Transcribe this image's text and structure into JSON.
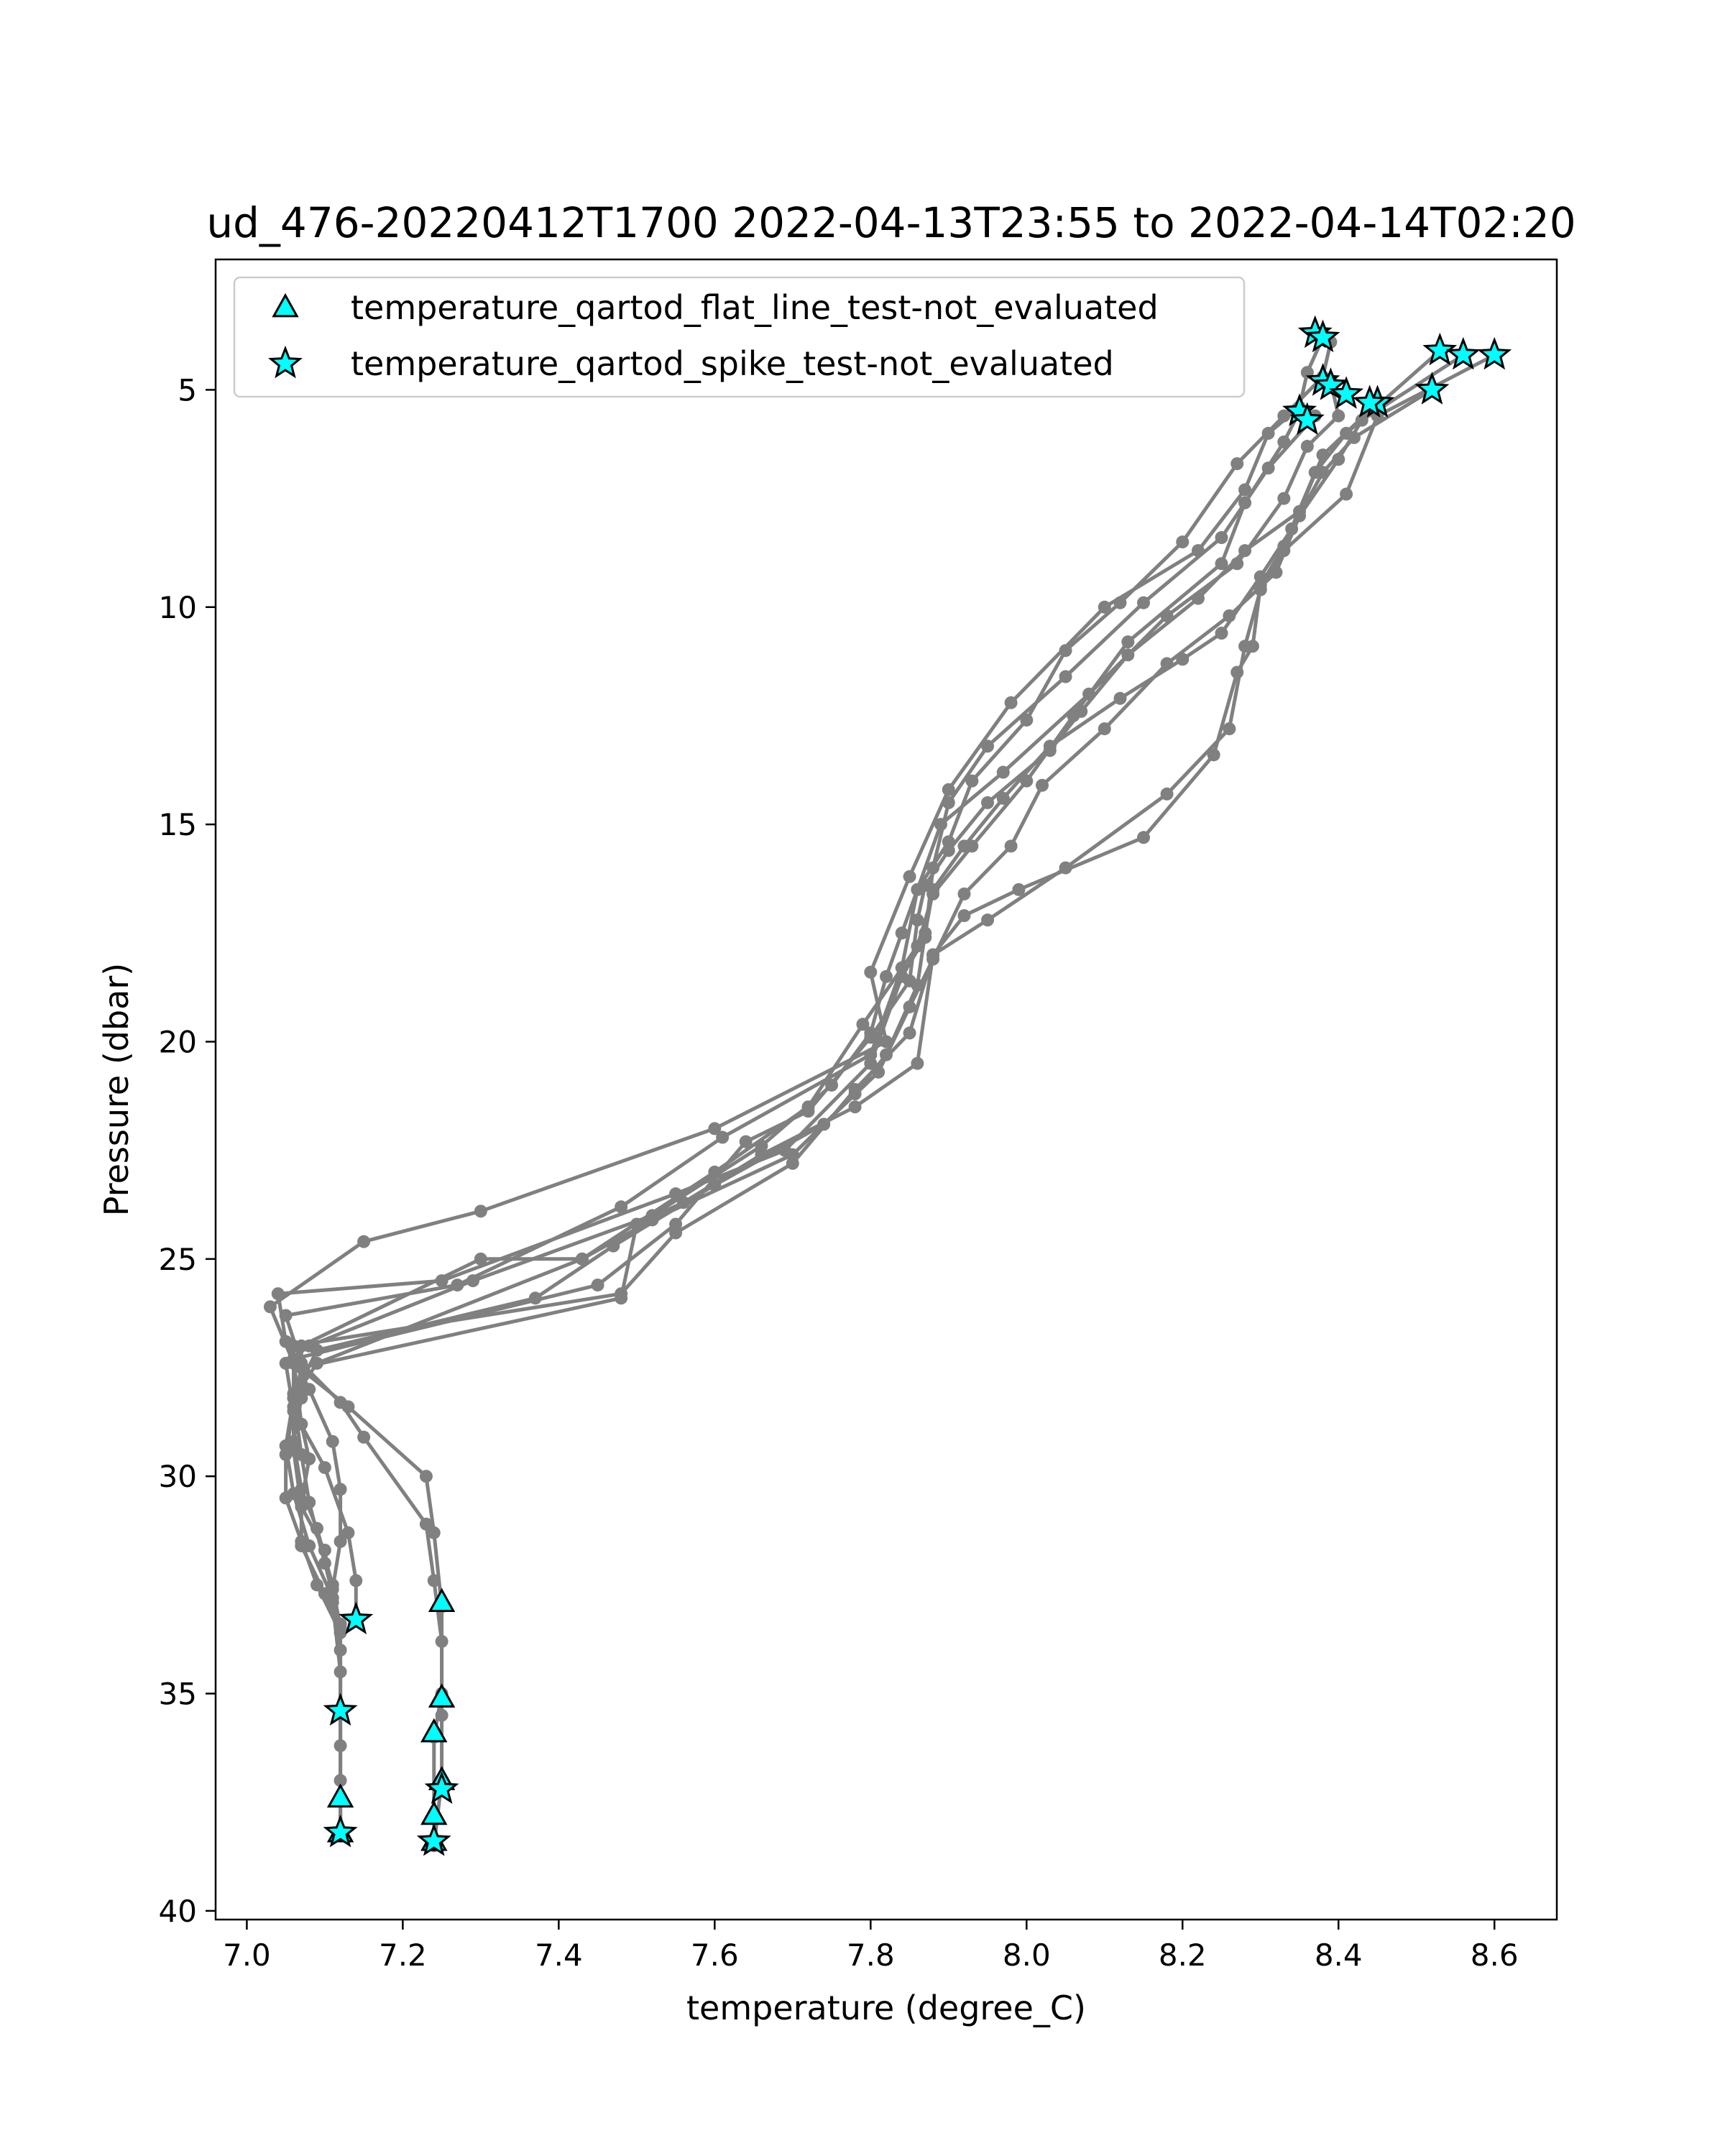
{
  "chart_data": {
    "type": "line",
    "title": "ud_476-20220412T1700 2022-04-13T23:55 to 2022-04-14T02:20",
    "xlabel": "temperature (degree_C)",
    "ylabel": "Pressure (dbar)",
    "xlim": [
      6.96,
      8.68
    ],
    "ylim": [
      40.2,
      2.0
    ],
    "y_inverted": true,
    "xticks": [
      "7.0",
      "7.2",
      "7.4",
      "7.6",
      "7.8",
      "8.0",
      "8.2",
      "8.4",
      "8.6"
    ],
    "yticks": [
      "5",
      "10",
      "15",
      "20",
      "25",
      "30",
      "35",
      "40"
    ],
    "grid": false,
    "legend_position": "upper-left",
    "colors": {
      "profile_line": "#808080",
      "flag_marker": "#00ffff",
      "marker_edge": "#000000"
    },
    "legend": [
      {
        "label": "temperature_qartod_flat_line_test-not_evaluated",
        "marker": "triangle"
      },
      {
        "label": "temperature_qartod_spike_test-not_evaluated",
        "marker": "star"
      }
    ],
    "profiles": [
      {
        "points": [
          [
            8.38,
            3.8
          ],
          [
            8.36,
            4.6
          ],
          [
            8.35,
            5.4
          ],
          [
            8.31,
            6.0
          ],
          [
            8.28,
            7.3
          ],
          [
            8.22,
            8.7
          ],
          [
            8.1,
            10.0
          ],
          [
            7.98,
            12.2
          ],
          [
            7.9,
            14.2
          ],
          [
            7.85,
            16.2
          ],
          [
            7.8,
            18.4
          ],
          [
            7.82,
            20.0
          ],
          [
            7.6,
            22.0
          ],
          [
            7.3,
            23.9
          ],
          [
            7.15,
            24.6
          ],
          [
            7.03,
            26.1
          ],
          [
            7.06,
            27.4
          ],
          [
            7.13,
            28.4
          ],
          [
            7.23,
            30.0
          ],
          [
            7.24,
            31.3
          ],
          [
            7.25,
            33.0
          ],
          [
            7.25,
            35.0
          ],
          [
            7.24,
            36.0
          ],
          [
            7.24,
            37.8
          ],
          [
            7.24,
            38.4
          ]
        ]
      },
      {
        "points": [
          [
            8.39,
            4.8
          ],
          [
            8.4,
            5.6
          ],
          [
            8.36,
            6.3
          ],
          [
            8.33,
            7.5
          ],
          [
            8.27,
            9.0
          ],
          [
            8.18,
            10.2
          ],
          [
            8.08,
            12.0
          ],
          [
            7.97,
            13.8
          ],
          [
            7.89,
            15.0
          ],
          [
            7.86,
            16.5
          ],
          [
            7.84,
            18.3
          ],
          [
            7.8,
            20.3
          ],
          [
            7.61,
            22.2
          ],
          [
            7.48,
            23.8
          ],
          [
            7.27,
            25.6
          ],
          [
            7.05,
            26.3
          ],
          [
            7.07,
            27.4
          ],
          [
            7.12,
            28.3
          ],
          [
            7.15,
            29.1
          ],
          [
            7.23,
            31.1
          ],
          [
            7.24,
            32.4
          ],
          [
            7.25,
            33.8
          ],
          [
            7.25,
            35.5
          ],
          [
            7.25,
            37.0
          ],
          [
            7.24,
            38.5
          ]
        ]
      },
      {
        "points": [
          [
            8.35,
            5.5
          ],
          [
            8.33,
            6.2
          ],
          [
            8.28,
            7.6
          ],
          [
            8.25,
            9.0
          ],
          [
            8.13,
            10.8
          ],
          [
            8.06,
            12.5
          ],
          [
            8.0,
            14.0
          ],
          [
            7.93,
            15.5
          ],
          [
            7.88,
            16.6
          ],
          [
            7.86,
            17.8
          ],
          [
            7.79,
            19.6
          ],
          [
            7.72,
            21.5
          ],
          [
            7.6,
            23.0
          ],
          [
            7.43,
            25.0
          ],
          [
            7.3,
            25.0
          ],
          [
            7.07,
            27.0
          ],
          [
            7.07,
            28.2
          ],
          [
            7.06,
            29.2
          ],
          [
            7.07,
            30.3
          ],
          [
            7.09,
            31.2
          ],
          [
            7.11,
            32.5
          ],
          [
            7.12,
            33.5
          ],
          [
            7.12,
            35.4
          ],
          [
            7.12,
            37.0
          ],
          [
            7.12,
            38.2
          ]
        ]
      },
      {
        "points": [
          [
            8.37,
            5.6
          ],
          [
            8.31,
            6.8
          ],
          [
            8.25,
            8.4
          ],
          [
            8.15,
            9.9
          ],
          [
            8.05,
            11.6
          ],
          [
            7.95,
            13.2
          ],
          [
            7.9,
            14.5
          ],
          [
            7.88,
            16.0
          ],
          [
            7.87,
            17.6
          ],
          [
            7.84,
            18.5
          ],
          [
            7.8,
            20.5
          ],
          [
            7.69,
            22.5
          ],
          [
            7.55,
            23.5
          ],
          [
            7.25,
            25.5
          ],
          [
            7.04,
            25.8
          ],
          [
            7.05,
            26.9
          ],
          [
            7.08,
            28.0
          ],
          [
            7.11,
            29.2
          ],
          [
            7.12,
            30.3
          ],
          [
            7.12,
            31.5
          ],
          [
            7.11,
            32.6
          ],
          [
            7.12,
            34.0
          ],
          [
            7.12,
            35.4
          ],
          [
            7.12,
            37.4
          ],
          [
            7.12,
            38.2
          ]
        ]
      },
      {
        "points": [
          [
            8.39,
            3.9
          ],
          [
            8.38,
            4.7
          ],
          [
            8.33,
            5.6
          ],
          [
            8.27,
            6.7
          ],
          [
            8.2,
            8.5
          ],
          [
            8.12,
            9.9
          ],
          [
            8.05,
            11.0
          ],
          [
            8.0,
            12.6
          ],
          [
            7.93,
            14.0
          ],
          [
            7.9,
            15.4
          ],
          [
            7.86,
            16.5
          ],
          [
            7.84,
            17.5
          ],
          [
            7.82,
            18.5
          ],
          [
            7.8,
            19.8
          ],
          [
            7.75,
            21.0
          ],
          [
            7.66,
            22.4
          ],
          [
            7.52,
            24.0
          ],
          [
            7.29,
            25.5
          ],
          [
            7.08,
            27.0
          ],
          [
            7.05,
            27.4
          ],
          [
            7.06,
            28.5
          ],
          [
            7.1,
            29.8
          ],
          [
            7.13,
            31.3
          ],
          [
            7.14,
            32.4
          ],
          [
            7.14,
            33.3
          ]
        ]
      },
      {
        "points": [
          [
            8.45,
            5.3
          ],
          [
            8.38,
            6.5
          ],
          [
            8.35,
            7.8
          ],
          [
            8.28,
            8.7
          ],
          [
            8.22,
            9.8
          ],
          [
            8.13,
            11.1
          ],
          [
            8.07,
            12.4
          ],
          [
            8.03,
            13.3
          ],
          [
            7.95,
            14.5
          ],
          [
            7.9,
            15.6
          ],
          [
            7.87,
            16.4
          ],
          [
            7.86,
            17.2
          ],
          [
            7.85,
            18.6
          ],
          [
            7.8,
            19.9
          ],
          [
            7.72,
            21.6
          ],
          [
            7.64,
            22.3
          ],
          [
            7.55,
            24.2
          ],
          [
            7.45,
            25.6
          ],
          [
            7.06,
            27.3
          ],
          [
            7.07,
            28.8
          ],
          [
            7.08,
            29.6
          ],
          [
            7.07,
            30.6
          ],
          [
            7.07,
            31.6
          ],
          [
            7.1,
            32.7
          ],
          [
            7.12,
            33.4
          ]
        ]
      },
      {
        "points": [
          [
            8.52,
            5.0
          ],
          [
            8.42,
            6.1
          ],
          [
            8.38,
            6.9
          ],
          [
            8.34,
            8.2
          ],
          [
            8.3,
            9.3
          ],
          [
            8.25,
            10.6
          ],
          [
            8.2,
            11.2
          ],
          [
            8.12,
            12.1
          ],
          [
            8.03,
            13.2
          ],
          [
            7.97,
            14.4
          ],
          [
            7.92,
            15.5
          ],
          [
            7.88,
            16.5
          ],
          [
            7.87,
            17.5
          ],
          [
            7.86,
            18.7
          ],
          [
            7.82,
            20.3
          ],
          [
            7.78,
            21.2
          ],
          [
            7.7,
            22.6
          ],
          [
            7.52,
            24.1
          ],
          [
            7.43,
            25.0
          ],
          [
            7.09,
            27.4
          ],
          [
            7.06,
            28.2
          ],
          [
            7.07,
            29.5
          ],
          [
            7.08,
            30.6
          ],
          [
            7.1,
            32.0
          ],
          [
            7.12,
            33.4
          ]
        ]
      },
      {
        "points": [
          [
            8.56,
            4.2
          ],
          [
            8.43,
            5.7
          ],
          [
            8.4,
            6.6
          ],
          [
            8.35,
            7.9
          ],
          [
            8.32,
            9.2
          ],
          [
            8.26,
            10.2
          ],
          [
            8.18,
            11.3
          ],
          [
            8.1,
            12.8
          ],
          [
            8.02,
            14.1
          ],
          [
            7.98,
            15.5
          ],
          [
            7.92,
            16.6
          ],
          [
            7.88,
            18.1
          ],
          [
            7.85,
            19.2
          ],
          [
            7.81,
            20.7
          ],
          [
            7.74,
            21.9
          ],
          [
            7.6,
            23.3
          ],
          [
            7.47,
            24.7
          ],
          [
            7.37,
            25.9
          ],
          [
            7.09,
            27.1
          ],
          [
            7.06,
            28.2
          ],
          [
            7.05,
            29.3
          ],
          [
            7.06,
            30.4
          ],
          [
            7.08,
            31.6
          ],
          [
            7.11,
            32.8
          ],
          [
            7.12,
            33.5
          ]
        ]
      },
      {
        "points": [
          [
            8.6,
            4.2
          ],
          [
            8.45,
            5.6
          ],
          [
            8.41,
            7.4
          ],
          [
            8.33,
            8.7
          ],
          [
            8.3,
            9.6
          ],
          [
            8.28,
            10.9
          ],
          [
            8.26,
            12.8
          ],
          [
            8.18,
            14.3
          ],
          [
            8.05,
            16.0
          ],
          [
            7.95,
            17.2
          ],
          [
            7.88,
            18.0
          ],
          [
            7.85,
            19.8
          ],
          [
            7.78,
            21.1
          ],
          [
            7.7,
            22.8
          ],
          [
            7.55,
            24.4
          ],
          [
            7.48,
            25.8
          ],
          [
            7.06,
            27.0
          ],
          [
            7.06,
            28.1
          ],
          [
            7.06,
            29.4
          ],
          [
            7.07,
            30.7
          ],
          [
            7.1,
            31.7
          ],
          [
            7.11,
            32.9
          ],
          [
            7.12,
            34.5
          ],
          [
            7.12,
            36.2
          ],
          [
            7.12,
            38.2
          ]
        ]
      },
      {
        "points": [
          [
            8.53,
            4.1
          ],
          [
            8.41,
            6.0
          ],
          [
            8.37,
            6.9
          ],
          [
            8.33,
            8.6
          ],
          [
            8.3,
            9.5
          ],
          [
            8.29,
            10.9
          ],
          [
            8.27,
            11.5
          ],
          [
            8.24,
            13.4
          ],
          [
            8.15,
            15.3
          ],
          [
            7.99,
            16.5
          ],
          [
            7.92,
            17.1
          ],
          [
            7.88,
            18.0
          ],
          [
            7.86,
            20.5
          ],
          [
            7.78,
            21.5
          ],
          [
            7.66,
            22.6
          ],
          [
            7.56,
            23.7
          ],
          [
            7.5,
            24.2
          ],
          [
            7.48,
            25.9
          ],
          [
            7.07,
            27.5
          ],
          [
            7.06,
            28.4
          ],
          [
            7.05,
            29.5
          ],
          [
            7.05,
            30.5
          ],
          [
            7.07,
            31.5
          ],
          [
            7.09,
            32.5
          ],
          [
            7.12,
            33.6
          ]
        ]
      }
    ],
    "flat_line_flags": [
      [
        7.25,
        32.9
      ],
      [
        7.25,
        35.1
      ],
      [
        7.24,
        35.9
      ],
      [
        7.24,
        37.8
      ],
      [
        7.24,
        38.4
      ],
      [
        7.12,
        37.4
      ],
      [
        7.12,
        38.2
      ],
      [
        7.25,
        37.0
      ]
    ],
    "spike_flags": [
      [
        8.37,
        3.7
      ],
      [
        8.38,
        3.8
      ],
      [
        8.38,
        4.8
      ],
      [
        8.39,
        4.9
      ],
      [
        8.41,
        5.1
      ],
      [
        8.45,
        5.3
      ],
      [
        8.44,
        5.3
      ],
      [
        8.35,
        5.5
      ],
      [
        8.36,
        5.7
      ],
      [
        8.52,
        5.0
      ],
      [
        8.53,
        4.1
      ],
      [
        8.56,
        4.2
      ],
      [
        8.6,
        4.2
      ],
      [
        7.14,
        33.3
      ],
      [
        7.12,
        35.4
      ],
      [
        7.12,
        38.2
      ],
      [
        7.25,
        37.2
      ],
      [
        7.24,
        38.4
      ]
    ]
  }
}
